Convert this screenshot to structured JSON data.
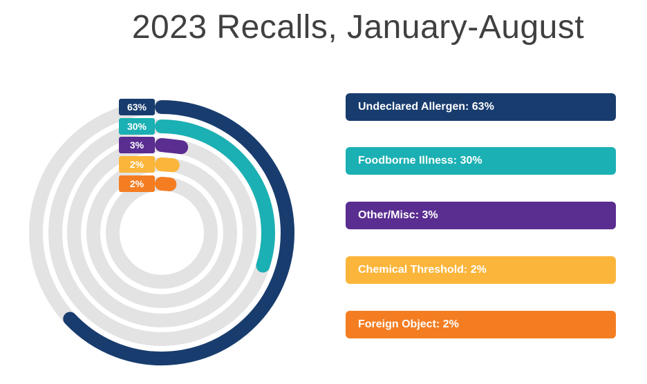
{
  "title": "2023 Recalls, January-August",
  "chart_data": {
    "type": "radial-bar",
    "title": "2023 Recalls, January-August",
    "unit": "%",
    "series": [
      {
        "name": "Undeclared Allergen",
        "value": 63,
        "label": "63%",
        "legend": "Undeclared Allergen: 63%",
        "color": "#183C6E"
      },
      {
        "name": "Foodborne Illness",
        "value": 30,
        "label": "30%",
        "legend": "Foodborne Illness: 30%",
        "color": "#1BB0B3"
      },
      {
        "name": "Other/Misc",
        "value": 3,
        "label": "3%",
        "legend": "Other/Misc: 3%",
        "color": "#5A2D91"
      },
      {
        "name": "Chemical Threshold",
        "value": 2,
        "label": "2%",
        "legend": "Chemical Threshold: 2%",
        "color": "#FBB53A"
      },
      {
        "name": "Foreign Object",
        "value": 2,
        "label": "2%",
        "legend": "Foreign Object: 2%",
        "color": "#F47D22"
      }
    ],
    "track_color": "#E3E3E3",
    "legend_placement": "right"
  }
}
